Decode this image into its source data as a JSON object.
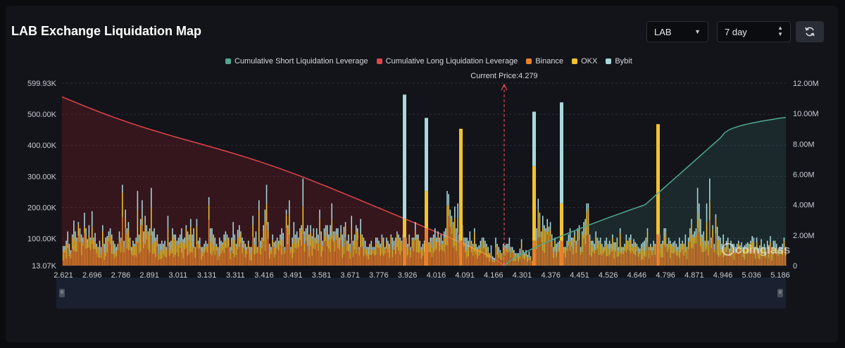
{
  "header": {
    "title": "LAB Exchange Liquidation Map",
    "symbol_select": {
      "value": "LAB"
    },
    "range_select": {
      "value": "7 day"
    }
  },
  "icons": {
    "refresh": "refresh-icon",
    "dropdown": "chevron-down-icon",
    "updown": "chevron-updown-icon",
    "watermark": "coinglass-logo"
  },
  "chart_data": {
    "type": "bar",
    "title": "LAB Exchange Liquidation Map",
    "current_price_label": "Current Price:4.279",
    "current_price": 4.279,
    "watermark": "coinglass",
    "legend": [
      {
        "name": "Cumulative Short Liquidation Leverage",
        "color": "#4fa88f"
      },
      {
        "name": "Cumulative Long Liquidation Leverage",
        "color": "#e0454b"
      },
      {
        "name": "Binance",
        "color": "#e8822a"
      },
      {
        "name": "OKX",
        "color": "#f2c230"
      },
      {
        "name": "Bybit",
        "color": "#a8d8dc"
      }
    ],
    "x_tick_labels": [
      "2.621",
      "2.696",
      "2.786",
      "2.891",
      "3.011",
      "3.131",
      "3.311",
      "3.416",
      "3.491",
      "3.581",
      "3.671",
      "3.776",
      "3.926",
      "4.016",
      "4.091",
      "4.166",
      "4.301",
      "4.376",
      "4.451",
      "4.526",
      "4.646",
      "4.796",
      "4.871",
      "4.946",
      "5.036",
      "5.186"
    ],
    "y_left_ticks": [
      "13.07K",
      "100.00K",
      "200.00K",
      "300.00K",
      "400.00K",
      "500.00K",
      "599.93K"
    ],
    "y_right_ticks": [
      "0",
      "2.00M",
      "4.00M",
      "6.00M",
      "8.00M",
      "10.00M",
      "12.00M"
    ],
    "ylim_left": [
      13070,
      599930
    ],
    "ylim_right": [
      0,
      12000000
    ],
    "grid": true,
    "bars_total": [
      63,
      63,
      80,
      110,
      70,
      50,
      100,
      145,
      110,
      90,
      140,
      120,
      100,
      90,
      170,
      120,
      85,
      130,
      90,
      175,
      90,
      105,
      70,
      60,
      80,
      60,
      130,
      70,
      90,
      95,
      110,
      120,
      100,
      80,
      70,
      60,
      70,
      110,
      90,
      260,
      80,
      180,
      120,
      140,
      90,
      60,
      80,
      70,
      90,
      240,
      100,
      150,
      210,
      110,
      160,
      130,
      110,
      120,
      250,
      110,
      120,
      90,
      100,
      70,
      70,
      80,
      70,
      80,
      60,
      160,
      75,
      80,
      120,
      100,
      100,
      80,
      90,
      100,
      120,
      85,
      90,
      130,
      110,
      100,
      150,
      100,
      120,
      60,
      150,
      80,
      90,
      60,
      60,
      70,
      80,
      70,
      220,
      120,
      120,
      100,
      90,
      70,
      60,
      90,
      80,
      75,
      100,
      110,
      100,
      90,
      60,
      90,
      140,
      100,
      70,
      115,
      130,
      110,
      90,
      80,
      70,
      60,
      80,
      60,
      60,
      160,
      90,
      110,
      60,
      210,
      80,
      90,
      130,
      180,
      260,
      140,
      70,
      60,
      100,
      75,
      80,
      90,
      80,
      100,
      120,
      105,
      60,
      180,
      130,
      210,
      60,
      90,
      140,
      100,
      110,
      90,
      120,
      130,
      280,
      110,
      120,
      130,
      100,
      130,
      95,
      120,
      90,
      120,
      100,
      180,
      110,
      80,
      120,
      130,
      130,
      100,
      130,
      200,
      110,
      110,
      120,
      120,
      90,
      130,
      100,
      125,
      140,
      80,
      100,
      70,
      160,
      80,
      100,
      130,
      120,
      60,
      150,
      100,
      90,
      80,
      60,
      60,
      70,
      80,
      60,
      60,
      90,
      90,
      80,
      70,
      100,
      90,
      60,
      90,
      80,
      70,
      100,
      90,
      80,
      90,
      110,
      100,
      90,
      80,
      100,
      90,
      90,
      70,
      100,
      60,
      90,
      90,
      140,
      100,
      100,
      80,
      60,
      70,
      80,
      100,
      60,
      75,
      90,
      90,
      100,
      120,
      90,
      110,
      90,
      100,
      80,
      110,
      120,
      240,
      230,
      180,
      160,
      140,
      190,
      120,
      200,
      100,
      210,
      130,
      90,
      90,
      90,
      80,
      110,
      80,
      70,
      120,
      70,
      60,
      65,
      80,
      90,
      90,
      80,
      70,
      60,
      40,
      65,
      30,
      25,
      90,
      70,
      60,
      50,
      40,
      70,
      65,
      70,
      70,
      90,
      60,
      60,
      50,
      40,
      40,
      40,
      55,
      85,
      50,
      40,
      50,
      35,
      45,
      30,
      15,
      30,
      80,
      120,
      215,
      170,
      110,
      160,
      130,
      120,
      150,
      125,
      140,
      100,
      60,
      90,
      70,
      75,
      80,
      80,
      90,
      60,
      60,
      80,
      100,
      120,
      90,
      90,
      110,
      80,
      120,
      130,
      60,
      110,
      140,
      150,
      200,
      200,
      100,
      80,
      80,
      70,
      110,
      90,
      80,
      90,
      70,
      60,
      80,
      90,
      70,
      80,
      70,
      100,
      75,
      75,
      90,
      60,
      120,
      60,
      60,
      70,
      100,
      80,
      90,
      100,
      70,
      85,
      75,
      70,
      60,
      55,
      70,
      75,
      80,
      90,
      120,
      60,
      70,
      60,
      80,
      70,
      70,
      90,
      100,
      70,
      80,
      120,
      120,
      70,
      90,
      80,
      70,
      75,
      80,
      70,
      60,
      90,
      70,
      80,
      70,
      100,
      60,
      90,
      120,
      150,
      100,
      110,
      120,
      250,
      200,
      150,
      100,
      110,
      80,
      200,
      80,
      280,
      90,
      130,
      70,
      165,
      125,
      95,
      90,
      70,
      100,
      60,
      80,
      90,
      55,
      80,
      70,
      70,
      60,
      70,
      80,
      65,
      75,
      60,
      65,
      70,
      75,
      70,
      80,
      95,
      90,
      60,
      90,
      55,
      65,
      85,
      60,
      70,
      45,
      80,
      60,
      95,
      60,
      80,
      80,
      70,
      50,
      60,
      60,
      70,
      90,
      60
    ],
    "bars_approx": "Per-price-level liquidation totals estimated from bar heights; values in thousands are approximate.",
    "major_bars": [
      {
        "x": "3.926",
        "total": 550000,
        "binance": 80000,
        "okx": 60000,
        "bybit": 410000
      },
      {
        "x": "4.016",
        "total": 475000,
        "binance": 120000,
        "okx": 120000,
        "bybit": 235000
      },
      {
        "x": "4.091",
        "total": 440000,
        "binance": 90000,
        "okx": 340000,
        "bybit": 10000
      },
      {
        "x": "4.376",
        "total": 495000,
        "binance": 80000,
        "okx": 240000,
        "bybit": 175000
      },
      {
        "x": "4.451",
        "total": 525000,
        "binance": 80000,
        "okx": 120000,
        "bybit": 325000
      },
      {
        "x": "4.796",
        "total": 455000,
        "binance": 100000,
        "okx": 330000,
        "bybit": 25000
      }
    ]
  }
}
